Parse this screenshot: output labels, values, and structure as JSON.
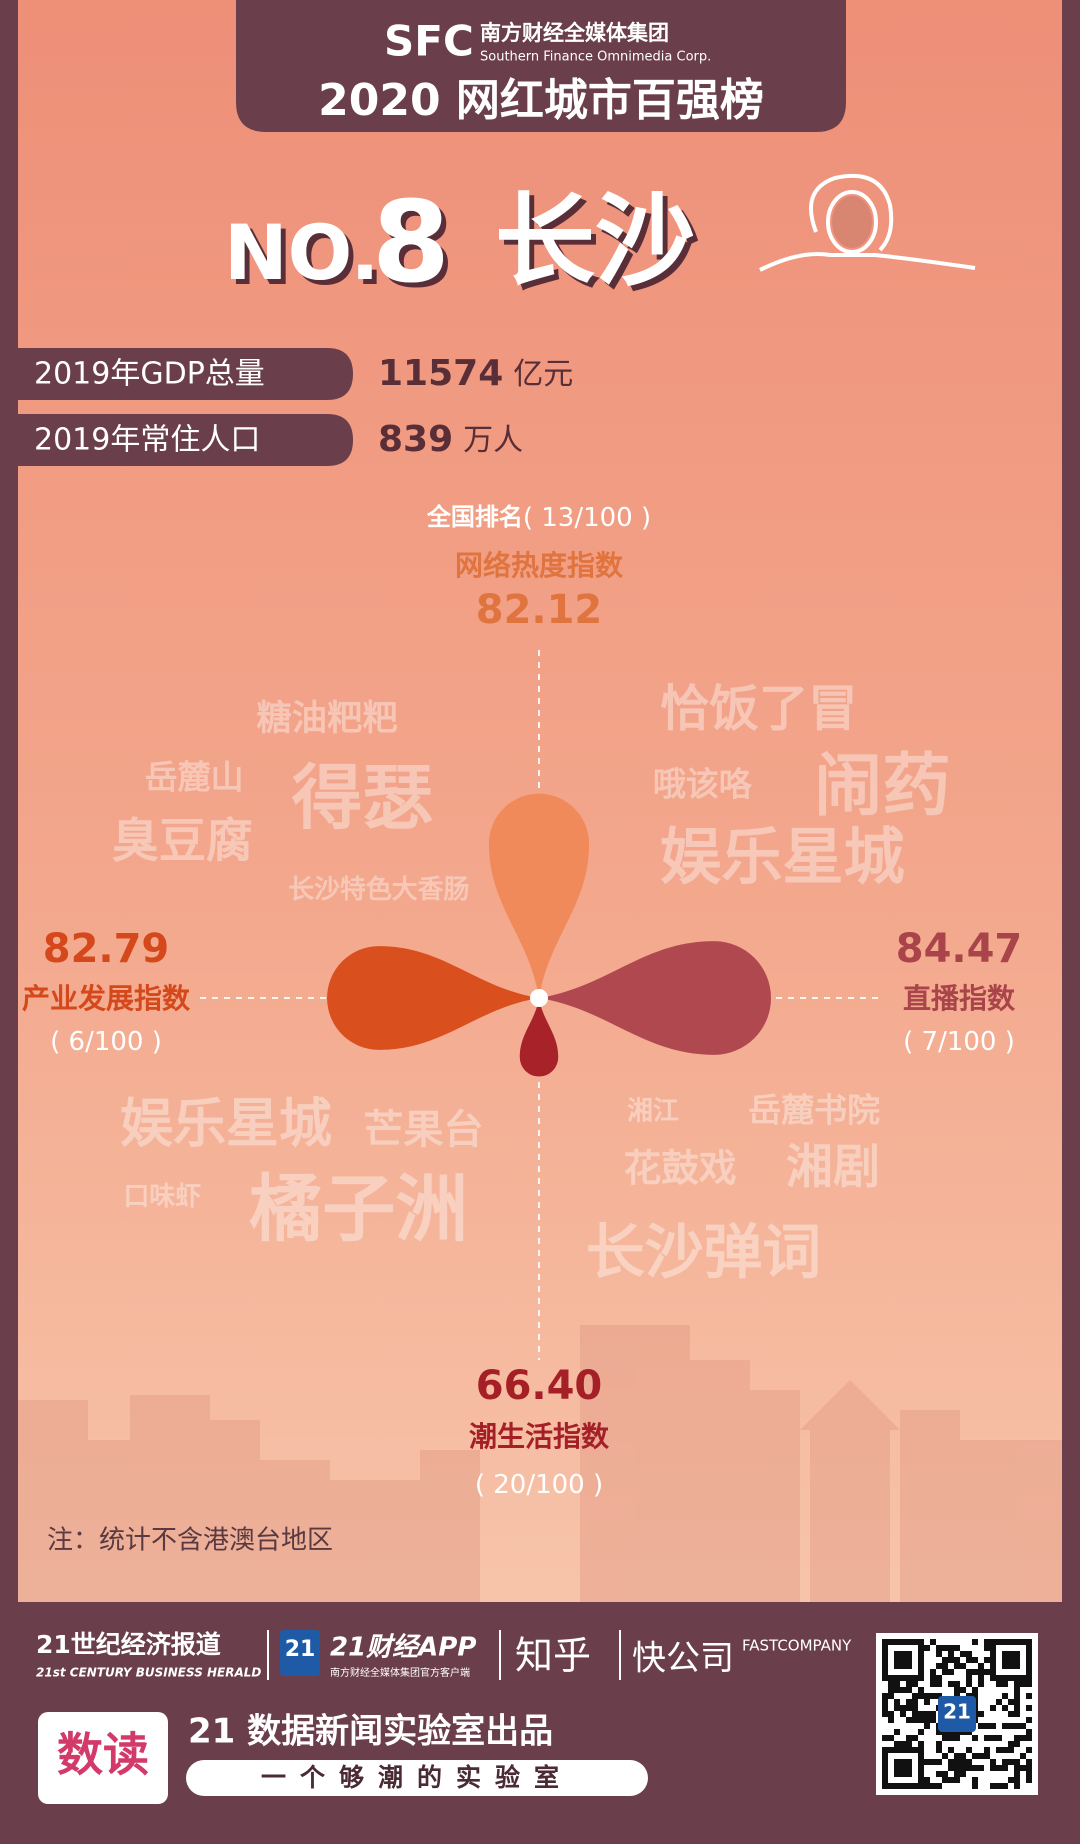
{
  "header": {
    "brand_abbr": "SFC",
    "brand_cn": "南方财经全媒体集团",
    "brand_en": "Southern Finance Omnimedia Corp.",
    "title": "2020 网红城市百强榜"
  },
  "city": {
    "rank_prefix": "NO.",
    "rank": 8,
    "name": "长沙"
  },
  "stats": [
    {
      "label": "2019年GDP总量",
      "value": 11574,
      "unit": "亿元"
    },
    {
      "label": "2019年常住人口",
      "value": 839,
      "unit": "万人"
    }
  ],
  "indices": [
    {
      "name": "网络热度指数",
      "value": 82.12,
      "rank_prefix": "全国排名",
      "rank": "( 13/100 )",
      "color": "#e0743f"
    },
    {
      "name": "直播指数",
      "value": 84.47,
      "rank": "( 7/100 )",
      "color": "#a9444b"
    },
    {
      "name": "潮生活指数",
      "value": 66.4,
      "value_label": "66.40",
      "rank": "( 20/100 )",
      "color": "#a51f27"
    },
    {
      "name": "产业发展指数",
      "value": 82.79,
      "rank": "( 6/100 )",
      "color": "#d4481b"
    }
  ],
  "petal_colors": [
    "#f08a5a",
    "#b0494f",
    "#a8222a",
    "#d9501e"
  ],
  "word_clouds": [
    [
      "糖油粑粑",
      "岳麓山",
      "得瑟",
      "臭豆腐",
      "长沙特色大香肠"
    ],
    [
      "恰饭了冒",
      "哦该咯",
      "闹药",
      "娱乐星城"
    ],
    [
      "娱乐星城",
      "芒果台",
      "口味虾",
      "橘子洲"
    ],
    [
      "湘江",
      "岳麓书院",
      "花鼓戏",
      "湘剧",
      "长沙弹词"
    ]
  ],
  "note": "注：统计不含港澳台地区",
  "footer": {
    "herald_cn": "21世纪经济报道",
    "herald_en": "21st CENTURY BUSINESS HERALD",
    "app_badge": "21",
    "app_name": "21财经APP",
    "app_sub": "南方财经全媒体集团官方客户端",
    "zhihu": "知乎",
    "fastco_cn": "快公司",
    "fastco_en": "FASTCOMPANY",
    "logo": "数读",
    "lab": "21 数据新闻实验室出品",
    "slogan": "一个够潮的实验室",
    "qr_badge": "21"
  }
}
